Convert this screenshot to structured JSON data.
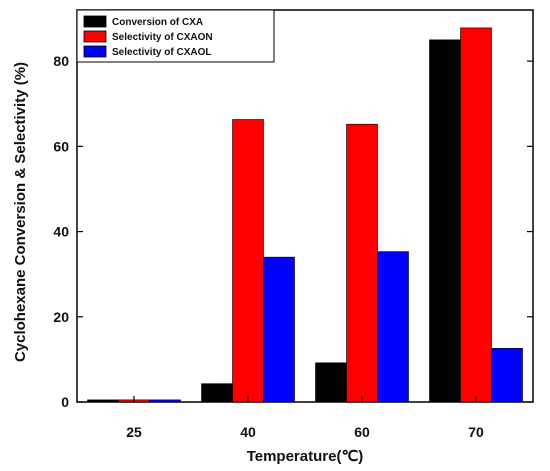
{
  "chart_data": {
    "type": "bar",
    "categories": [
      "25",
      "40",
      "60",
      "70"
    ],
    "series": [
      {
        "name": "Conversion of CXA",
        "color": "#000000",
        "values": [
          0.5,
          4.3,
          9.2,
          85.0
        ]
      },
      {
        "name": "Selectivity of CXAON",
        "color": "#ff0000",
        "values": [
          0.5,
          66.3,
          65.2,
          87.8
        ]
      },
      {
        "name": "Selectivity of CXAOL",
        "color": "#0000ff",
        "values": [
          0.5,
          34.0,
          35.3,
          12.6
        ]
      }
    ],
    "xlabel": "Temperature(℃)",
    "ylabel": "Cyclohexane Conversion & Selectivity (%)",
    "ylim": [
      0,
      92
    ],
    "yticks": [
      0,
      20,
      40,
      60,
      80
    ],
    "ytick_labels": [
      "0",
      "20",
      "40",
      "60",
      "80"
    ],
    "legend_position": "top-left",
    "grid": false
  }
}
